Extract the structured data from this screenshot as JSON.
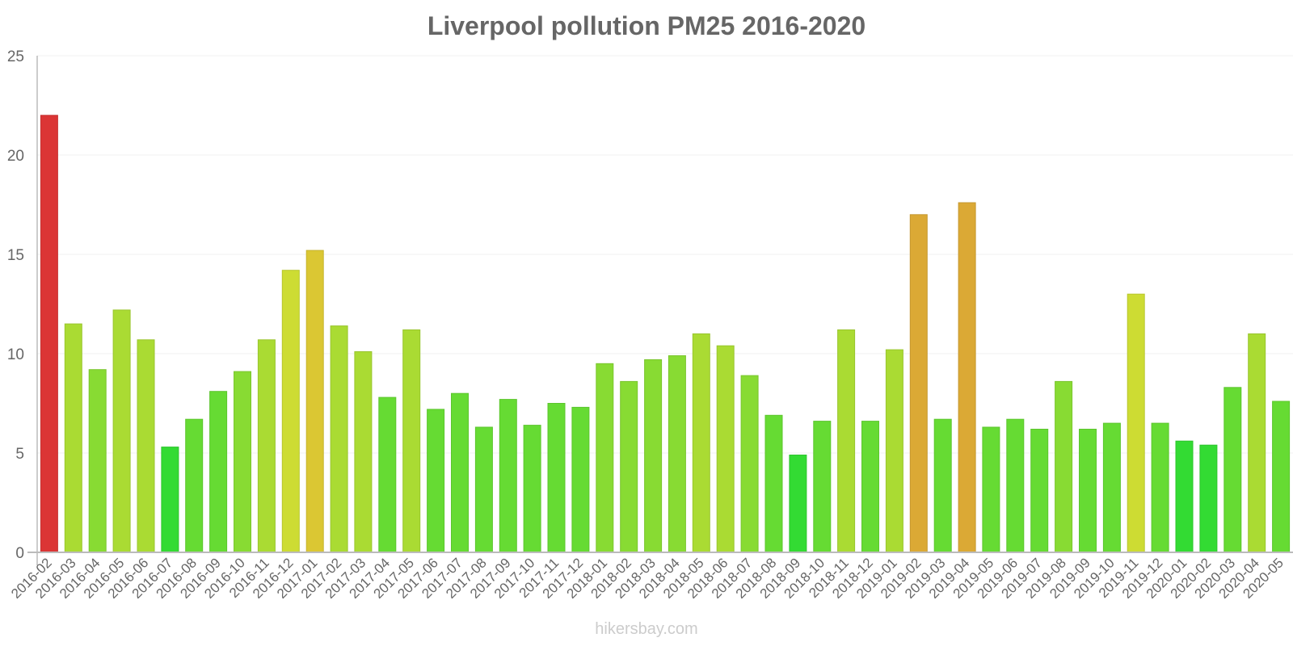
{
  "chart_data": {
    "type": "bar",
    "title": "Liverpool pollution PM25 2016-2020",
    "xlabel": "",
    "ylabel": "",
    "ylim": [
      0,
      25
    ],
    "yticks": [
      0,
      5,
      10,
      15,
      20,
      25
    ],
    "grid": true,
    "legend": null,
    "categories": [
      "2016-02",
      "2016-03",
      "2016-04",
      "2016-05",
      "2016-06",
      "2016-07",
      "2016-08",
      "2016-09",
      "2016-10",
      "2016-11",
      "2016-12",
      "2017-01",
      "2017-02",
      "2017-03",
      "2017-04",
      "2017-05",
      "2017-06",
      "2017-07",
      "2017-08",
      "2017-09",
      "2017-10",
      "2017-11",
      "2017-12",
      "2018-01",
      "2018-02",
      "2018-03",
      "2018-04",
      "2018-05",
      "2018-06",
      "2018-07",
      "2018-08",
      "2018-09",
      "2018-10",
      "2018-11",
      "2018-12",
      "2019-01",
      "2019-02",
      "2019-03",
      "2019-04",
      "2019-05",
      "2019-06",
      "2019-07",
      "2019-08",
      "2019-09",
      "2019-10",
      "2019-11",
      "2019-12",
      "2020-01",
      "2020-02",
      "2020-03",
      "2020-04",
      "2020-05"
    ],
    "values": [
      22,
      11.5,
      9.2,
      12.2,
      10.7,
      5.3,
      6.7,
      8.1,
      9.1,
      10.7,
      14.2,
      15.2,
      11.4,
      10.1,
      7.8,
      11.2,
      7.2,
      8.0,
      6.3,
      7.7,
      6.4,
      7.5,
      7.3,
      9.5,
      8.6,
      9.7,
      9.9,
      11.0,
      10.4,
      8.9,
      6.9,
      4.9,
      6.6,
      11.2,
      6.6,
      10.2,
      17.0,
      6.7,
      17.6,
      6.3,
      6.7,
      6.2,
      8.6,
      6.2,
      6.5,
      13.0,
      6.5,
      5.6,
      5.4,
      8.3,
      11.0,
      7.6
    ],
    "watermark": "hikersbay.com"
  },
  "colors": {
    "title": "#666666",
    "axis": "#bbbbbb",
    "grid": "#f2f2f2",
    "tick_text": "#666666",
    "watermark": "#cccccc",
    "scale": [
      {
        "max": 5.6,
        "fill": "#33db33",
        "stroke": "#2ec42e"
      },
      {
        "max": 8.4,
        "fill": "#66db33",
        "stroke": "#5cc52e"
      },
      {
        "max": 10.0,
        "fill": "#88db33",
        "stroke": "#7ac52e"
      },
      {
        "max": 12.5,
        "fill": "#aadb33",
        "stroke": "#99c52e"
      },
      {
        "max": 14.9,
        "fill": "#cddc33",
        "stroke": "#b8c62e"
      },
      {
        "max": 16.0,
        "fill": "#dbc733",
        "stroke": "#c5b32e"
      },
      {
        "max": 20.0,
        "fill": "#dba935",
        "stroke": "#c59830"
      },
      {
        "max": 999,
        "fill": "#db3535",
        "stroke": "#c53030"
      }
    ]
  }
}
